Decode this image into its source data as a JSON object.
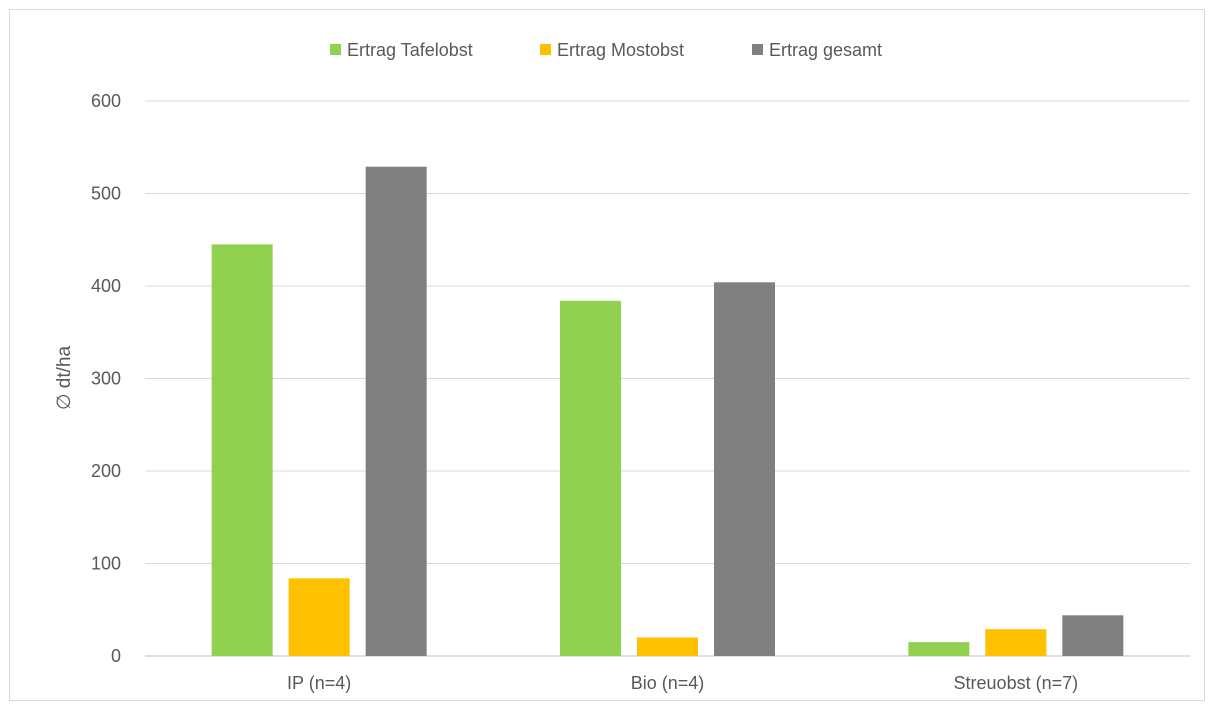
{
  "chart_data": {
    "type": "bar",
    "title": "",
    "xlabel": "",
    "ylabel": "∅ dt/ha",
    "ylim": [
      0,
      600
    ],
    "yticks": [
      0,
      100,
      200,
      300,
      400,
      500,
      600
    ],
    "grid": "horizontal",
    "legend_position": "top",
    "categories": [
      "IP (n=4)",
      "Bio (n=4)",
      "Streuobst (n=7)"
    ],
    "series": [
      {
        "name": "Ertrag Tafelobst",
        "color": "#92d050",
        "values": [
          445,
          384,
          15
        ]
      },
      {
        "name": "Ertrag Mostobst",
        "color": "#ffc000",
        "values": [
          84,
          20,
          29
        ]
      },
      {
        "name": "Ertrag gesamt",
        "color": "#808080",
        "values": [
          529,
          404,
          44
        ]
      }
    ]
  }
}
